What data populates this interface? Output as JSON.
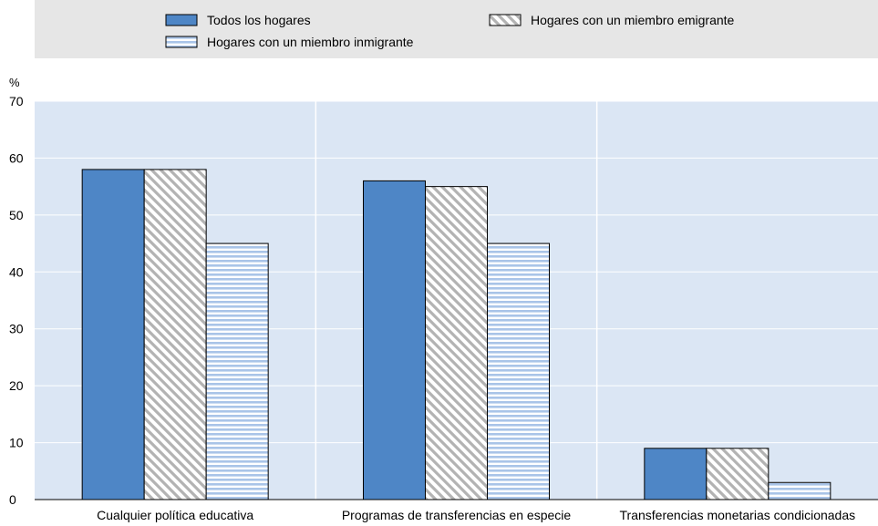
{
  "chart_data": {
    "type": "bar",
    "title": "",
    "xlabel": "",
    "ylabel": "%",
    "ylim": [
      0,
      70
    ],
    "yticks": [
      "0",
      "10",
      "20",
      "30",
      "40",
      "50",
      "60",
      "70"
    ],
    "legend_position": "top",
    "grid": "vertical separators between categories",
    "categories": [
      "Cualquier política educativa",
      "Programas de transferencias en especie",
      "Transferencias monetarias condicionadas"
    ],
    "series": [
      {
        "name": "Todos los hogares",
        "values": [
          58,
          56,
          9
        ],
        "color": "#4e86c6",
        "pattern": "solid"
      },
      {
        "name": "Hogares con un miembro emigrante",
        "values": [
          58,
          55,
          9
        ],
        "color": "#b3b3b3",
        "pattern": "diagonal-hatch"
      },
      {
        "name": "Hogares con un miembro inmigrante",
        "values": [
          45,
          45,
          3
        ],
        "color": "#a9c4e8",
        "pattern": "horizontal-stripes"
      }
    ]
  }
}
